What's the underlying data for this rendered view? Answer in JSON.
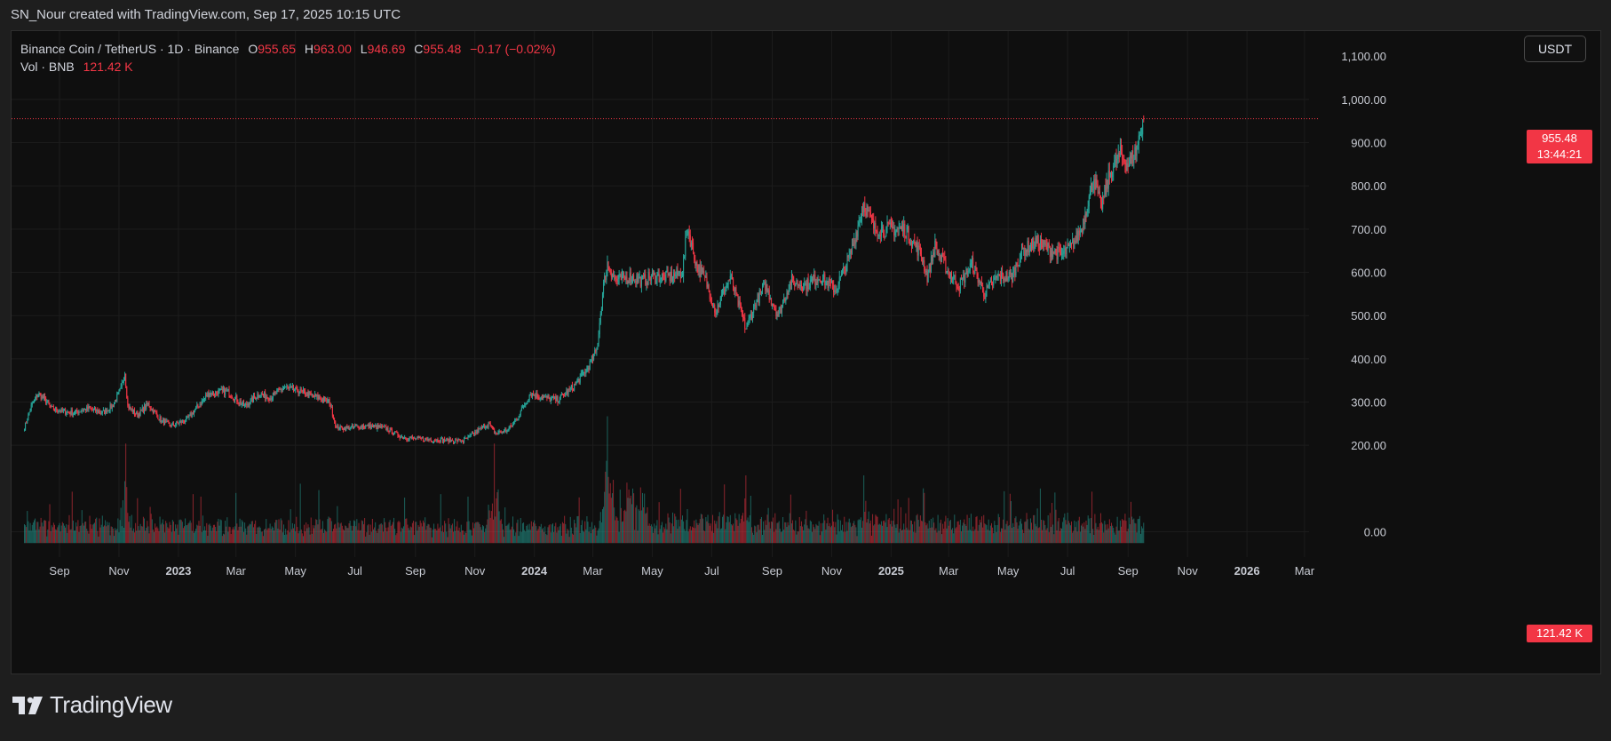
{
  "caption": "SN_Nour created with TradingView.com, Sep 17, 2025 10:15 UTC",
  "legend": {
    "symbol": "Binance Coin / TetherUS · 1D · Binance",
    "open_label": "O",
    "open": "955.65",
    "high_label": "H",
    "high": "963.00",
    "low_label": "L",
    "low": "946.69",
    "close_label": "C",
    "close": "955.48",
    "change": "−0.17 (−0.02%)",
    "vol_label": "Vol · BNB",
    "vol_value": "121.42 K"
  },
  "currency_button": "USDT",
  "last_price": {
    "price": "955.48",
    "countdown": "13:44:21"
  },
  "last_volume": "121.42 K",
  "brand": "TradingView",
  "colors": {
    "up": "#26a69a",
    "down": "#f23645",
    "background": "#0f0f0f",
    "grid": "#1c1c1c",
    "text": "#d1d4dc"
  },
  "chart_data": {
    "type": "candlestick",
    "symbol": "BNB/USDT",
    "interval": "1D",
    "y_ticks": [
      "200.00",
      "300.00",
      "400.00",
      "500.00",
      "600.00",
      "700.00",
      "800.00",
      "900.00",
      "1,000.00"
    ],
    "ylim": [
      0,
      1120
    ],
    "y_top_label": "1,100.00",
    "x_ticks": [
      {
        "label": "Sep",
        "date": "2022-09-01",
        "bold": false
      },
      {
        "label": "Nov",
        "date": "2022-11-01",
        "bold": false
      },
      {
        "label": "2023",
        "date": "2023-01-01",
        "bold": true
      },
      {
        "label": "Mar",
        "date": "2023-03-01",
        "bold": false
      },
      {
        "label": "May",
        "date": "2023-05-01",
        "bold": false
      },
      {
        "label": "Jul",
        "date": "2023-07-01",
        "bold": false
      },
      {
        "label": "Sep",
        "date": "2023-09-01",
        "bold": false
      },
      {
        "label": "Nov",
        "date": "2023-11-01",
        "bold": false
      },
      {
        "label": "2024",
        "date": "2024-01-01",
        "bold": true
      },
      {
        "label": "Mar",
        "date": "2024-03-01",
        "bold": false
      },
      {
        "label": "May",
        "date": "2024-05-01",
        "bold": false
      },
      {
        "label": "Jul",
        "date": "2024-07-01",
        "bold": false
      },
      {
        "label": "Sep",
        "date": "2024-09-01",
        "bold": false
      },
      {
        "label": "Nov",
        "date": "2024-11-01",
        "bold": false
      },
      {
        "label": "2025",
        "date": "2025-01-01",
        "bold": true
      },
      {
        "label": "Mar",
        "date": "2025-03-01",
        "bold": false
      },
      {
        "label": "May",
        "date": "2025-05-01",
        "bold": false
      },
      {
        "label": "Jul",
        "date": "2025-07-01",
        "bold": false
      },
      {
        "label": "Sep",
        "date": "2025-09-01",
        "bold": false
      },
      {
        "label": "Nov",
        "date": "2025-11-01",
        "bold": false
      },
      {
        "label": "2026",
        "date": "2026-01-01",
        "bold": true
      },
      {
        "label": "Mar",
        "date": "2026-03-01",
        "bold": false
      }
    ],
    "price_path": [
      {
        "date": "2022-07-27",
        "close": 240
      },
      {
        "date": "2022-08-03",
        "close": 290
      },
      {
        "date": "2022-08-10",
        "close": 320
      },
      {
        "date": "2022-08-17",
        "close": 305
      },
      {
        "date": "2022-08-24",
        "close": 285
      },
      {
        "date": "2022-09-01",
        "close": 280
      },
      {
        "date": "2022-09-15",
        "close": 275
      },
      {
        "date": "2022-10-01",
        "close": 285
      },
      {
        "date": "2022-10-15",
        "close": 275
      },
      {
        "date": "2022-10-25",
        "close": 290
      },
      {
        "date": "2022-11-03",
        "close": 330
      },
      {
        "date": "2022-11-07",
        "close": 370
      },
      {
        "date": "2022-11-10",
        "close": 290
      },
      {
        "date": "2022-11-20",
        "close": 270
      },
      {
        "date": "2022-12-01",
        "close": 295
      },
      {
        "date": "2022-12-15",
        "close": 255
      },
      {
        "date": "2022-12-25",
        "close": 245
      },
      {
        "date": "2023-01-10",
        "close": 260
      },
      {
        "date": "2023-02-01",
        "close": 320
      },
      {
        "date": "2023-02-20",
        "close": 325
      },
      {
        "date": "2023-03-10",
        "close": 290
      },
      {
        "date": "2023-03-25",
        "close": 320
      },
      {
        "date": "2023-04-05",
        "close": 310
      },
      {
        "date": "2023-04-20",
        "close": 335
      },
      {
        "date": "2023-05-10",
        "close": 320
      },
      {
        "date": "2023-05-25",
        "close": 310
      },
      {
        "date": "2023-06-05",
        "close": 300
      },
      {
        "date": "2023-06-12",
        "close": 240
      },
      {
        "date": "2023-06-25",
        "close": 240
      },
      {
        "date": "2023-07-10",
        "close": 245
      },
      {
        "date": "2023-08-01",
        "close": 240
      },
      {
        "date": "2023-08-17",
        "close": 220
      },
      {
        "date": "2023-09-01",
        "close": 215
      },
      {
        "date": "2023-10-01",
        "close": 212
      },
      {
        "date": "2023-10-20",
        "close": 210
      },
      {
        "date": "2023-11-05",
        "close": 235
      },
      {
        "date": "2023-11-15",
        "close": 250
      },
      {
        "date": "2023-11-22",
        "close": 228
      },
      {
        "date": "2023-12-05",
        "close": 235
      },
      {
        "date": "2023-12-15",
        "close": 265
      },
      {
        "date": "2023-12-28",
        "close": 320
      },
      {
        "date": "2024-01-10",
        "close": 310
      },
      {
        "date": "2024-01-25",
        "close": 305
      },
      {
        "date": "2024-02-10",
        "close": 335
      },
      {
        "date": "2024-02-25",
        "close": 380
      },
      {
        "date": "2024-03-05",
        "close": 420
      },
      {
        "date": "2024-03-12",
        "close": 570
      },
      {
        "date": "2024-03-16",
        "close": 620
      },
      {
        "date": "2024-03-25",
        "close": 580
      },
      {
        "date": "2024-04-10",
        "close": 590
      },
      {
        "date": "2024-04-20",
        "close": 580
      },
      {
        "date": "2024-05-01",
        "close": 590
      },
      {
        "date": "2024-05-20",
        "close": 590
      },
      {
        "date": "2024-06-01",
        "close": 600
      },
      {
        "date": "2024-06-06",
        "close": 705
      },
      {
        "date": "2024-06-15",
        "close": 620
      },
      {
        "date": "2024-06-25",
        "close": 580
      },
      {
        "date": "2024-07-05",
        "close": 510
      },
      {
        "date": "2024-07-20",
        "close": 590
      },
      {
        "date": "2024-08-05",
        "close": 470
      },
      {
        "date": "2024-08-15",
        "close": 530
      },
      {
        "date": "2024-08-25",
        "close": 570
      },
      {
        "date": "2024-09-07",
        "close": 500
      },
      {
        "date": "2024-09-20",
        "close": 580
      },
      {
        "date": "2024-10-05",
        "close": 570
      },
      {
        "date": "2024-10-20",
        "close": 590
      },
      {
        "date": "2024-11-05",
        "close": 560
      },
      {
        "date": "2024-11-20",
        "close": 640
      },
      {
        "date": "2024-12-04",
        "close": 760
      },
      {
        "date": "2024-12-15",
        "close": 700
      },
      {
        "date": "2024-12-30",
        "close": 700
      },
      {
        "date": "2025-01-15",
        "close": 700
      },
      {
        "date": "2025-02-01",
        "close": 640
      },
      {
        "date": "2025-02-07",
        "close": 590
      },
      {
        "date": "2025-02-15",
        "close": 660
      },
      {
        "date": "2025-03-01",
        "close": 600
      },
      {
        "date": "2025-03-12",
        "close": 570
      },
      {
        "date": "2025-03-25",
        "close": 620
      },
      {
        "date": "2025-04-07",
        "close": 550
      },
      {
        "date": "2025-04-20",
        "close": 590
      },
      {
        "date": "2025-05-05",
        "close": 590
      },
      {
        "date": "2025-05-15",
        "close": 650
      },
      {
        "date": "2025-05-30",
        "close": 670
      },
      {
        "date": "2025-06-15",
        "close": 650
      },
      {
        "date": "2025-06-25",
        "close": 640
      },
      {
        "date": "2025-07-05",
        "close": 660
      },
      {
        "date": "2025-07-15",
        "close": 700
      },
      {
        "date": "2025-07-28",
        "close": 820
      },
      {
        "date": "2025-08-04",
        "close": 750
      },
      {
        "date": "2025-08-15",
        "close": 840
      },
      {
        "date": "2025-08-24",
        "close": 870
      },
      {
        "date": "2025-09-01",
        "close": 850
      },
      {
        "date": "2025-09-09",
        "close": 880
      },
      {
        "date": "2025-09-17",
        "close": 955.48
      }
    ],
    "volume_spikes": [
      {
        "date": "2022-11-08",
        "value": 1.0
      },
      {
        "date": "2023-11-21",
        "value": 1.0
      },
      {
        "date": "2024-03-16",
        "value": 0.95
      },
      {
        "date": "2024-08-05",
        "value": 0.68
      },
      {
        "date": "2024-12-04",
        "value": 0.68
      },
      {
        "date": "2025-02-03",
        "value": 0.55
      }
    ],
    "last": {
      "open": 955.65,
      "high": 963.0,
      "low": 946.69,
      "close": 955.48
    }
  }
}
